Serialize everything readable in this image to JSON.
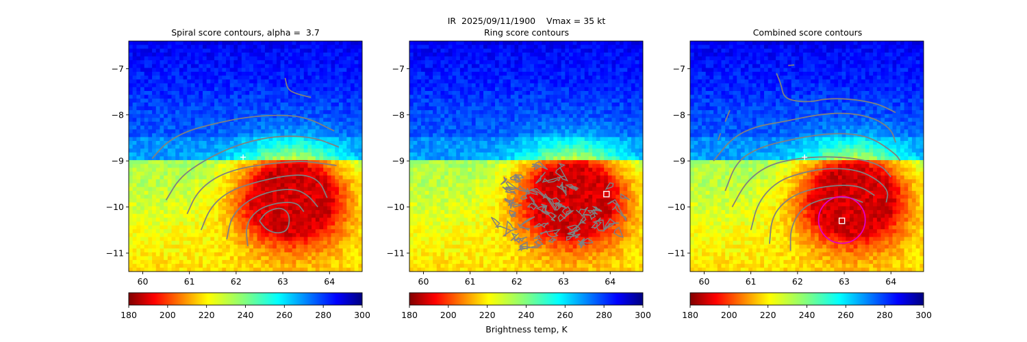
{
  "figure": {
    "suptitle": "IR  2025/09/11/1900    Vmax = 35 kt",
    "colorbar_label": "Brightness temp, K"
  },
  "chart_data": [
    {
      "type": "heatmap",
      "title": "Spiral score contours, alpha =  3.7",
      "xlim": [
        59.7,
        64.7
      ],
      "ylim": [
        -11.4,
        -6.4
      ],
      "xticks": [
        60,
        61,
        62,
        63,
        64
      ],
      "yticks": [
        -11,
        -10,
        -9,
        -8,
        -7
      ],
      "colorscale": "jet_r",
      "clim": [
        180,
        300
      ],
      "colorbar_ticks": [
        180,
        200,
        220,
        240,
        260,
        280,
        300
      ],
      "colorbar_orientation": "horizontal",
      "markers": [
        {
          "symbol": "plus",
          "x": 62.15,
          "y": -8.92,
          "color": "#ffffff"
        }
      ],
      "contour_color": "#808080",
      "contours": [
        [
          [
            60.2,
            -8.95
          ],
          [
            60.5,
            -8.6
          ],
          [
            60.95,
            -8.35
          ],
          [
            61.5,
            -8.2
          ],
          [
            62.2,
            -8.05
          ],
          [
            62.9,
            -8.0
          ],
          [
            63.5,
            -8.05
          ],
          [
            64.1,
            -8.35
          ]
        ],
        [
          [
            60.5,
            -9.85
          ],
          [
            60.8,
            -9.35
          ],
          [
            61.3,
            -9.0
          ],
          [
            61.9,
            -8.7
          ],
          [
            62.5,
            -8.52
          ],
          [
            63.1,
            -8.45
          ],
          [
            63.7,
            -8.5
          ],
          [
            64.2,
            -8.7
          ]
        ],
        [
          [
            60.95,
            -10.15
          ],
          [
            61.15,
            -9.7
          ],
          [
            61.55,
            -9.35
          ],
          [
            62.1,
            -9.15
          ],
          [
            62.8,
            -9.05
          ],
          [
            63.4,
            -9.0
          ],
          [
            63.8,
            -9.05
          ],
          [
            64.15,
            -9.1
          ]
        ],
        [
          [
            61.25,
            -10.5
          ],
          [
            61.45,
            -10.0
          ],
          [
            61.85,
            -9.65
          ],
          [
            62.45,
            -9.45
          ],
          [
            63.05,
            -9.32
          ],
          [
            63.5,
            -9.3
          ],
          [
            63.8,
            -9.45
          ],
          [
            63.95,
            -9.8
          ]
        ],
        [
          [
            61.8,
            -10.7
          ],
          [
            61.9,
            -10.2
          ],
          [
            62.25,
            -9.85
          ],
          [
            62.75,
            -9.65
          ],
          [
            63.25,
            -9.6
          ],
          [
            63.55,
            -9.75
          ],
          [
            63.75,
            -10.0
          ]
        ],
        [
          [
            62.25,
            -10.85
          ],
          [
            62.2,
            -10.4
          ],
          [
            62.45,
            -10.05
          ],
          [
            62.9,
            -9.9
          ],
          [
            63.3,
            -9.9
          ],
          [
            63.45,
            -10.1
          ]
        ],
        [
          [
            62.5,
            -10.3
          ],
          [
            62.65,
            -10.1
          ],
          [
            62.95,
            -10.0
          ],
          [
            63.15,
            -10.15
          ],
          [
            63.12,
            -10.5
          ],
          [
            62.9,
            -10.58
          ],
          [
            62.65,
            -10.5
          ],
          [
            62.5,
            -10.3
          ]
        ],
        [
          [
            63.05,
            -7.2
          ],
          [
            63.1,
            -7.45
          ],
          [
            63.3,
            -7.55
          ],
          [
            63.6,
            -7.62
          ]
        ]
      ]
    },
    {
      "type": "heatmap",
      "title": "Ring score contours",
      "xlim": [
        59.7,
        64.7
      ],
      "ylim": [
        -11.4,
        -6.4
      ],
      "xticks": [
        60,
        61,
        62,
        63,
        64
      ],
      "yticks": [
        -11,
        -10,
        -9,
        -8,
        -7
      ],
      "colorscale": "jet_r",
      "clim": [
        180,
        300
      ],
      "colorbar_ticks": [
        180,
        200,
        220,
        240,
        260,
        280,
        300
      ],
      "colorbar_orientation": "horizontal",
      "markers": [
        {
          "symbol": "square",
          "x": 63.92,
          "y": -9.72,
          "color": "#ffffff"
        }
      ],
      "contour_color": "#808080",
      "contour_region": {
        "x": [
          61.2,
          64.1
        ],
        "y": [
          -11.1,
          -9.2
        ]
      }
    },
    {
      "type": "heatmap",
      "title": "Combined score contours",
      "xlim": [
        59.7,
        64.7
      ],
      "ylim": [
        -11.4,
        -6.4
      ],
      "xticks": [
        60,
        61,
        62,
        63,
        64
      ],
      "yticks": [
        -11,
        -10,
        -9,
        -8,
        -7
      ],
      "colorscale": "jet_r",
      "clim": [
        180,
        300
      ],
      "colorbar_ticks": [
        180,
        200,
        220,
        240,
        260,
        280,
        300
      ],
      "colorbar_orientation": "horizontal",
      "markers": [
        {
          "symbol": "plus",
          "x": 62.15,
          "y": -8.92,
          "color": "#ffffff"
        },
        {
          "symbol": "square",
          "x": 62.95,
          "y": -10.3,
          "color": "#ffffff"
        }
      ],
      "circle": {
        "x": 62.95,
        "y": -10.28,
        "r": 0.5,
        "color": "#e000c8"
      },
      "contour_color": "#808080",
      "contours": [
        [
          [
            60.2,
            -9.0
          ],
          [
            60.6,
            -8.5
          ],
          [
            61.1,
            -8.25
          ],
          [
            61.7,
            -8.15
          ],
          [
            62.4,
            -8.0
          ],
          [
            63.0,
            -7.95
          ],
          [
            63.6,
            -8.05
          ],
          [
            64.0,
            -8.3
          ],
          [
            64.1,
            -8.6
          ]
        ],
        [
          [
            60.45,
            -9.65
          ],
          [
            60.7,
            -9.0
          ],
          [
            61.2,
            -8.7
          ],
          [
            61.8,
            -8.55
          ],
          [
            62.5,
            -8.42
          ],
          [
            63.1,
            -8.4
          ],
          [
            63.6,
            -8.5
          ],
          [
            64.1,
            -8.85
          ],
          [
            64.2,
            -9.0
          ]
        ],
        [
          [
            60.6,
            -10.0
          ],
          [
            60.9,
            -9.45
          ],
          [
            61.35,
            -9.1
          ],
          [
            61.95,
            -8.95
          ],
          [
            62.6,
            -8.9
          ],
          [
            63.3,
            -8.95
          ],
          [
            63.8,
            -9.1
          ],
          [
            64.0,
            -9.35
          ]
        ],
        [
          [
            61.0,
            -10.5
          ],
          [
            61.15,
            -9.9
          ],
          [
            61.55,
            -9.45
          ],
          [
            62.1,
            -9.25
          ],
          [
            62.7,
            -9.15
          ],
          [
            63.3,
            -9.2
          ],
          [
            63.7,
            -9.4
          ],
          [
            63.95,
            -9.65
          ],
          [
            63.9,
            -9.9
          ]
        ],
        [
          [
            61.4,
            -10.8
          ],
          [
            61.45,
            -10.2
          ],
          [
            61.8,
            -9.8
          ],
          [
            62.3,
            -9.6
          ],
          [
            62.9,
            -9.52
          ],
          [
            63.35,
            -9.55
          ],
          [
            63.65,
            -9.75
          ]
        ],
        [
          [
            61.85,
            -10.95
          ],
          [
            61.85,
            -10.45
          ],
          [
            62.1,
            -10.0
          ],
          [
            62.6,
            -9.8
          ],
          [
            63.1,
            -9.78
          ],
          [
            63.4,
            -9.9
          ]
        ],
        [
          [
            61.55,
            -7.1
          ],
          [
            61.65,
            -7.35
          ],
          [
            61.7,
            -7.6
          ],
          [
            61.9,
            -7.7
          ],
          [
            62.3,
            -7.72
          ],
          [
            62.6,
            -7.65
          ],
          [
            63.1,
            -7.65
          ],
          [
            63.7,
            -7.75
          ],
          [
            64.1,
            -7.95
          ]
        ],
        [
          [
            60.55,
            -7.9
          ],
          [
            60.45,
            -8.15
          ]
        ],
        [
          [
            60.35,
            -8.4
          ],
          [
            60.3,
            -8.55
          ]
        ],
        [
          [
            61.8,
            -6.93
          ],
          [
            61.93,
            -6.92
          ]
        ]
      ]
    }
  ]
}
